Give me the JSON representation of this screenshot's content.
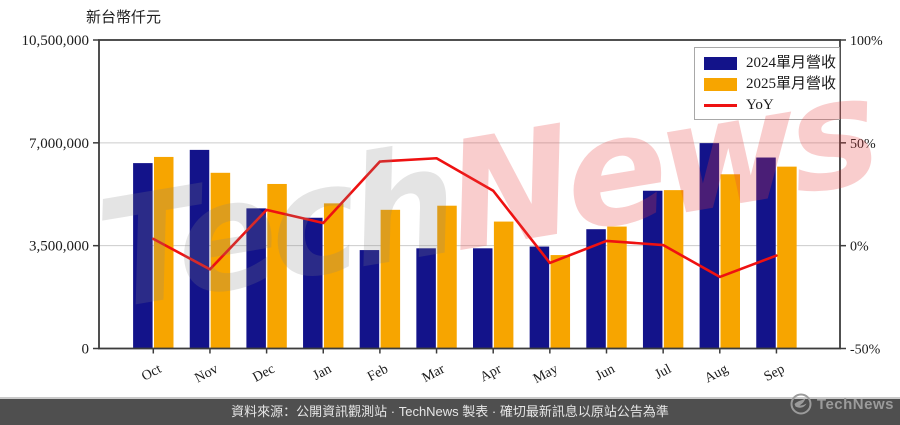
{
  "chart_data": {
    "type": "bar",
    "subtype": "grouped-bars-with-line",
    "unit_label": "新台幣仟元",
    "categories": [
      "Oct",
      "Nov",
      "Dec",
      "Jan",
      "Feb",
      "Mar",
      "Apr",
      "May",
      "Jun",
      "Jul",
      "Aug",
      "Sep"
    ],
    "series": [
      {
        "name": "2024單月營收",
        "type": "bar",
        "axis": "left",
        "color": "#13138A",
        "values": [
          6310000,
          6760000,
          4770000,
          4450000,
          3350000,
          3410000,
          3410000,
          3470000,
          4060000,
          5370000,
          6990000,
          6500000
        ]
      },
      {
        "name": "2025單月營收",
        "type": "bar",
        "axis": "left",
        "color": "#F7A500",
        "values": [
          6520000,
          5980000,
          5600000,
          4940000,
          4720000,
          4860000,
          4320000,
          3180000,
          4150000,
          5390000,
          5930000,
          6190000
        ]
      },
      {
        "name": "YoY",
        "type": "line",
        "axis": "right",
        "color": "#EE1111",
        "values": [
          3.3,
          -11.5,
          17.4,
          11.0,
          40.9,
          42.5,
          26.7,
          -8.4,
          2.3,
          0.3,
          -15.2,
          -4.8
        ]
      }
    ],
    "left_axis": {
      "min": 0,
      "max": 10500000,
      "ticks": [
        {
          "value": 0,
          "label": "0"
        },
        {
          "value": 3500000,
          "label": "3,500,000"
        },
        {
          "value": 7000000,
          "label": "7,000,000"
        },
        {
          "value": 10500000,
          "label": "10,500,000"
        }
      ]
    },
    "right_axis": {
      "min": -50,
      "max": 100,
      "ticks": [
        {
          "value": -50,
          "label": "-50%"
        },
        {
          "value": 0,
          "label": "0%"
        },
        {
          "value": 50,
          "label": "50%"
        },
        {
          "value": 100,
          "label": "100%"
        }
      ]
    },
    "grid": true,
    "legend_position": "top-right"
  },
  "watermark": {
    "part1": "Tech",
    "part2": "News"
  },
  "footer": {
    "source_text": "資料來源：公開資訊觀測站 · TechNews 製表 · 確切最新訊息以原站公告為準",
    "logo_text": "TechNews"
  },
  "colors": {
    "bar_2024": "#13138A",
    "bar_2025": "#F7A500",
    "yoy_line": "#EE1111",
    "gridline": "#CCCCCC",
    "axis_frame": "#3C3C3C",
    "footer_bar": "#4F4F4F"
  }
}
